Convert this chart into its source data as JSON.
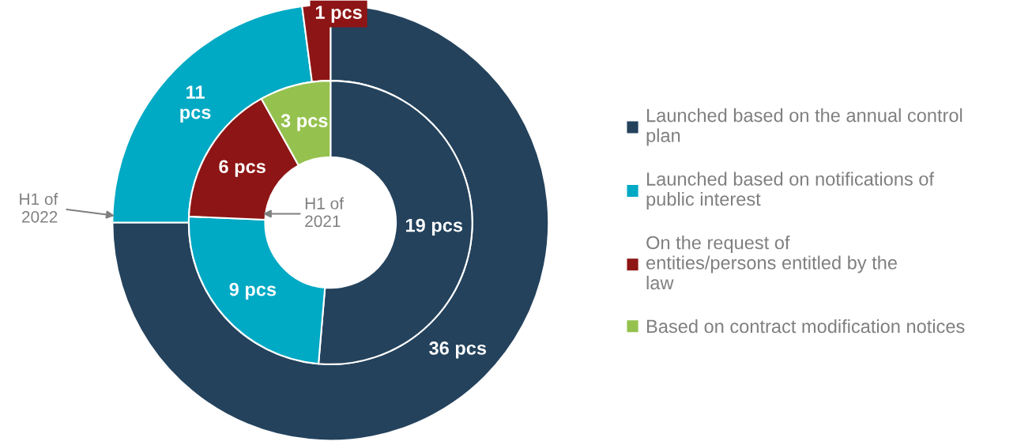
{
  "chart_data": {
    "type": "donut",
    "categories": [
      "Launched based on the annual control\nplan",
      "Launched based on notifications of\npublic interest",
      "On the request of\nentities/persons entitled by the\nlaw",
      "Based on contract modification notices"
    ],
    "colors": [
      "#24425c",
      "#00a9c4",
      "#8e1515",
      "#95c24e"
    ],
    "series": [
      {
        "name": "H1 of\n2022",
        "values": [
          36,
          11,
          1,
          0
        ],
        "value_labels": [
          "36 pcs",
          "11\npcs",
          "1 pcs",
          null
        ]
      },
      {
        "name": "H1 of\n2021",
        "values": [
          19,
          9,
          6,
          3
        ],
        "value_labels": [
          "19 pcs",
          "9 pcs",
          "6 pcs",
          "3 pcs"
        ]
      }
    ],
    "legend": "right"
  }
}
